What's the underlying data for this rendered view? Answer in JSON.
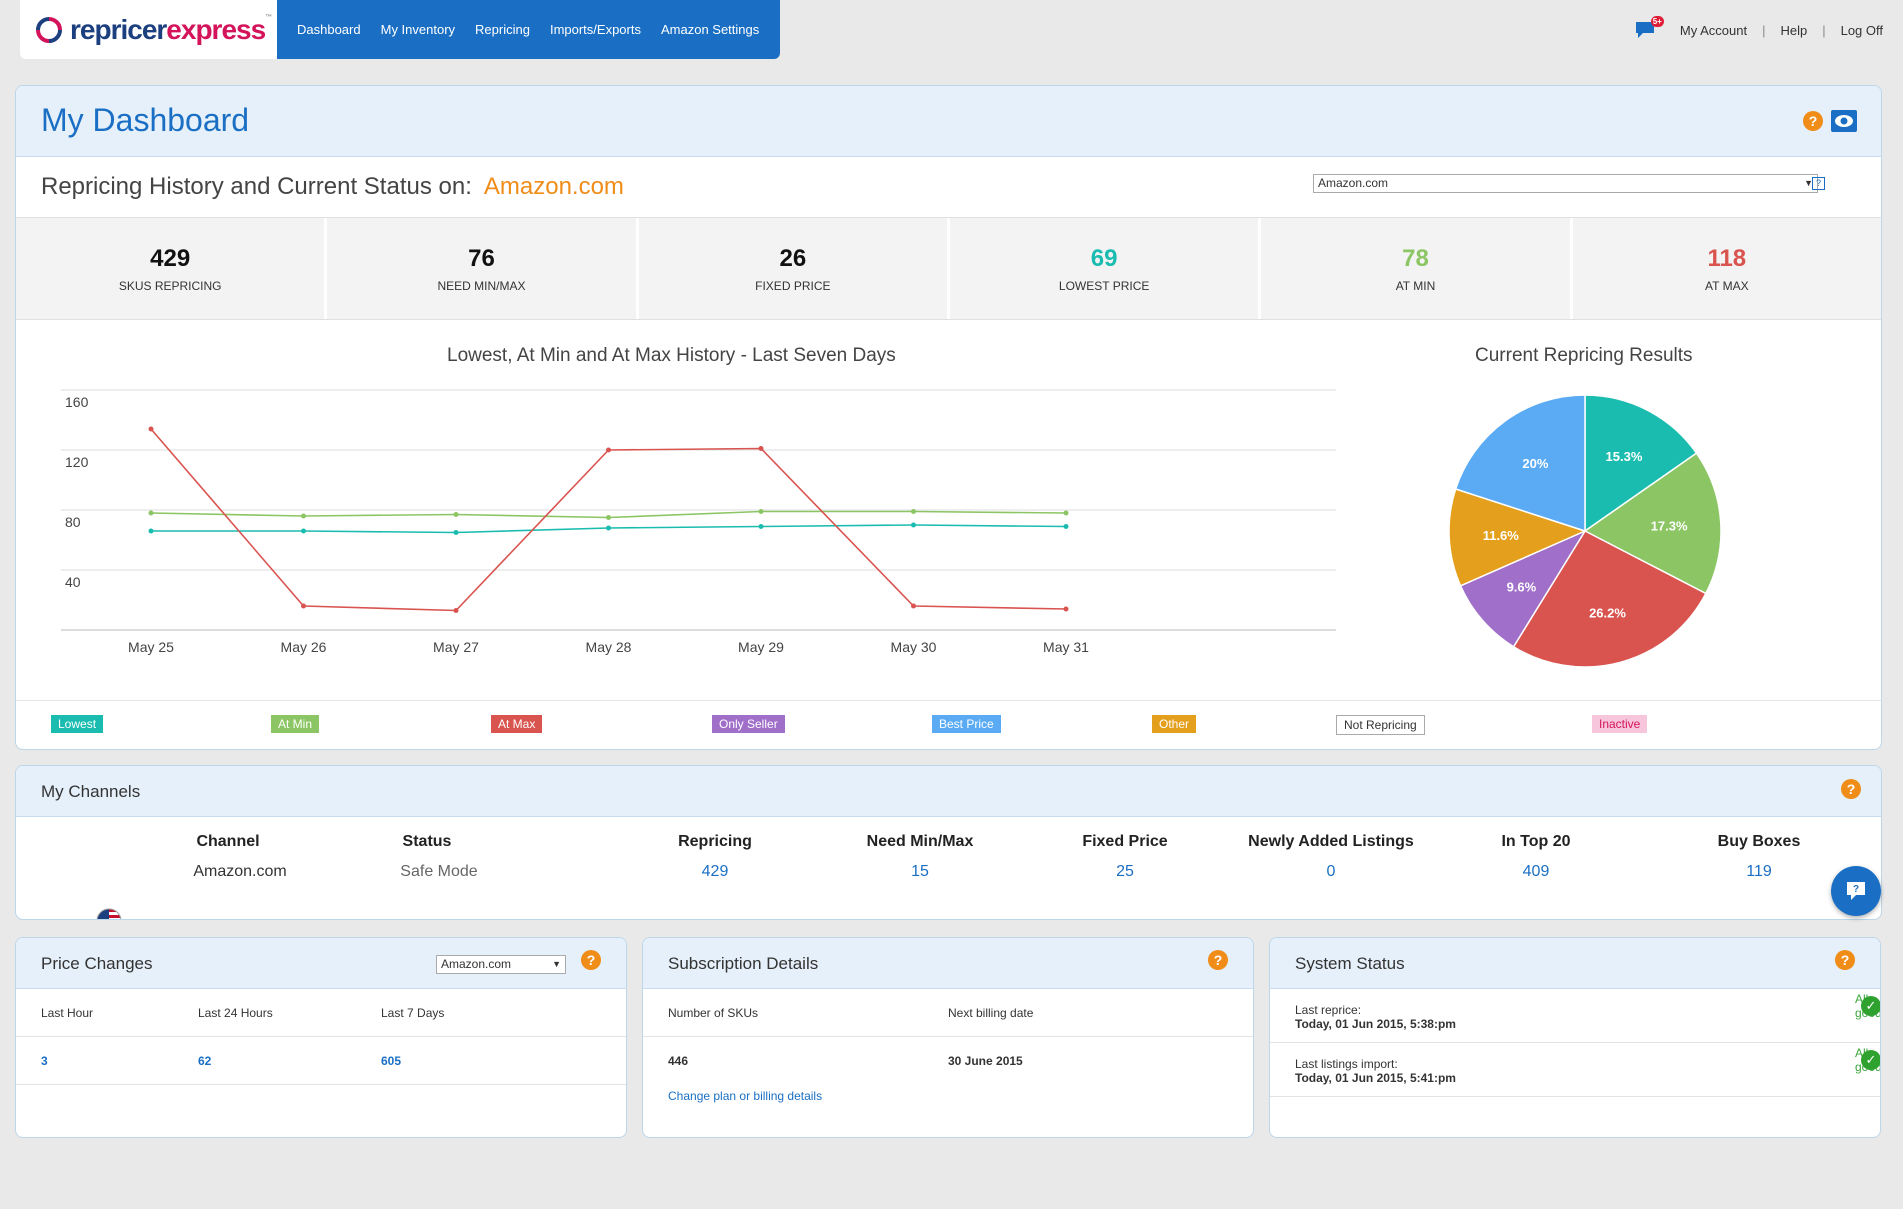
{
  "logo": {
    "part1": "repricer",
    "part2": "express",
    "tm": "™"
  },
  "nav": [
    "Dashboard",
    "My Inventory",
    "Repricing",
    "Imports/Exports",
    "Amazon Settings"
  ],
  "topbar": {
    "badge": "5+",
    "account": "My Account",
    "help": "Help",
    "logoff": "Log Off"
  },
  "dashboard": {
    "title": "My Dashboard",
    "status_label": "Repricing History and Current Status on:",
    "status_market": "Amazon.com",
    "market_select": "Amazon.com",
    "market_help": "?"
  },
  "stats": [
    {
      "value": "429",
      "label": "SKUS REPRICING",
      "color": "#111111"
    },
    {
      "value": "76",
      "label": "NEED MIN/MAX",
      "color": "#111111"
    },
    {
      "value": "26",
      "label": "FIXED PRICE",
      "color": "#111111"
    },
    {
      "value": "69",
      "label": "LOWEST PRICE",
      "color": "#1bbcb0"
    },
    {
      "value": "78",
      "label": "AT MIN",
      "color": "#8cc563"
    },
    {
      "value": "118",
      "label": "AT MAX",
      "color": "#d9534f"
    }
  ],
  "chart_data": [
    {
      "type": "line",
      "title": "Lowest, At Min and At Max History - Last Seven Days",
      "categories": [
        "May 25",
        "May 26",
        "May 27",
        "May 28",
        "May 29",
        "May 30",
        "May 31"
      ],
      "ylim": [
        0,
        160
      ],
      "yticks": [
        40,
        80,
        120,
        160
      ],
      "grid": true,
      "series": [
        {
          "name": "Lowest",
          "color": "#1bbcb0",
          "values": [
            66,
            66,
            65,
            68,
            69,
            70,
            69
          ]
        },
        {
          "name": "At Min",
          "color": "#8cc563",
          "values": [
            78,
            76,
            77,
            75,
            79,
            79,
            78
          ]
        },
        {
          "name": "At Max",
          "color": "#d9534f",
          "values": [
            134,
            16,
            13,
            120,
            121,
            16,
            14
          ]
        }
      ]
    },
    {
      "type": "pie",
      "title": "Current Repricing Results",
      "slices": [
        {
          "label": "15.3%",
          "value": 15.3,
          "color": "#1bbcb0"
        },
        {
          "label": "17.3%",
          "value": 17.3,
          "color": "#8cc563"
        },
        {
          "label": "26.2%",
          "value": 26.2,
          "color": "#d9534f"
        },
        {
          "label": "9.6%",
          "value": 9.6,
          "color": "#a06fc9"
        },
        {
          "label": "11.6%",
          "value": 11.6,
          "color": "#e4a01d"
        },
        {
          "label": "20%",
          "value": 20.0,
          "color": "#5aabf4"
        }
      ]
    }
  ],
  "legend": [
    {
      "label": "Lowest",
      "bg": "#1bbcb0",
      "fg": "#ffffff"
    },
    {
      "label": "At Min",
      "bg": "#8cc563",
      "fg": "#ffffff"
    },
    {
      "label": "At Max",
      "bg": "#d9534f",
      "fg": "#ffffff"
    },
    {
      "label": "Only Seller",
      "bg": "#a06fc9",
      "fg": "#ffffff"
    },
    {
      "label": "Best Price",
      "bg": "#5aabf4",
      "fg": "#ffffff"
    },
    {
      "label": "Other",
      "bg": "#e4a01d",
      "fg": "#ffffff"
    },
    {
      "label": "Not Repricing",
      "bg": "#ffffff",
      "fg": "#333333"
    },
    {
      "label": "Inactive",
      "bg": "#f7c6dc",
      "fg": "#d4145a"
    }
  ],
  "channels": {
    "title": "My Channels",
    "headers": [
      "Channel",
      "Status",
      "Repricing",
      "Need Min/Max",
      "Fixed Price",
      "Newly Added Listings",
      "In Top 20",
      "Buy Boxes"
    ],
    "row": {
      "channel": "Amazon.com",
      "status": "Safe Mode",
      "repricing": "429",
      "need_minmax": "15",
      "fixed_price": "25",
      "newly_added": "0",
      "in_top_20": "409",
      "buy_boxes": "119"
    }
  },
  "price_changes": {
    "title": "Price Changes",
    "select": "Amazon.com",
    "headers": [
      "Last Hour",
      "Last 24 Hours",
      "Last 7 Days"
    ],
    "values": [
      "3",
      "62",
      "605"
    ]
  },
  "subscription": {
    "title": "Subscription Details",
    "headers": [
      "Number of SKUs",
      "Next billing date"
    ],
    "values": [
      "446",
      "30 June 2015"
    ],
    "link": "Change plan or billing details"
  },
  "system_status": {
    "title": "System Status",
    "rows": [
      {
        "label": "Last reprice:",
        "value": "Today, 01 Jun 2015, 5:38:pm",
        "status": "All good!"
      },
      {
        "label": "Last listings import:",
        "value": "Today, 01 Jun 2015, 5:41:pm",
        "status": "All good!"
      }
    ]
  }
}
